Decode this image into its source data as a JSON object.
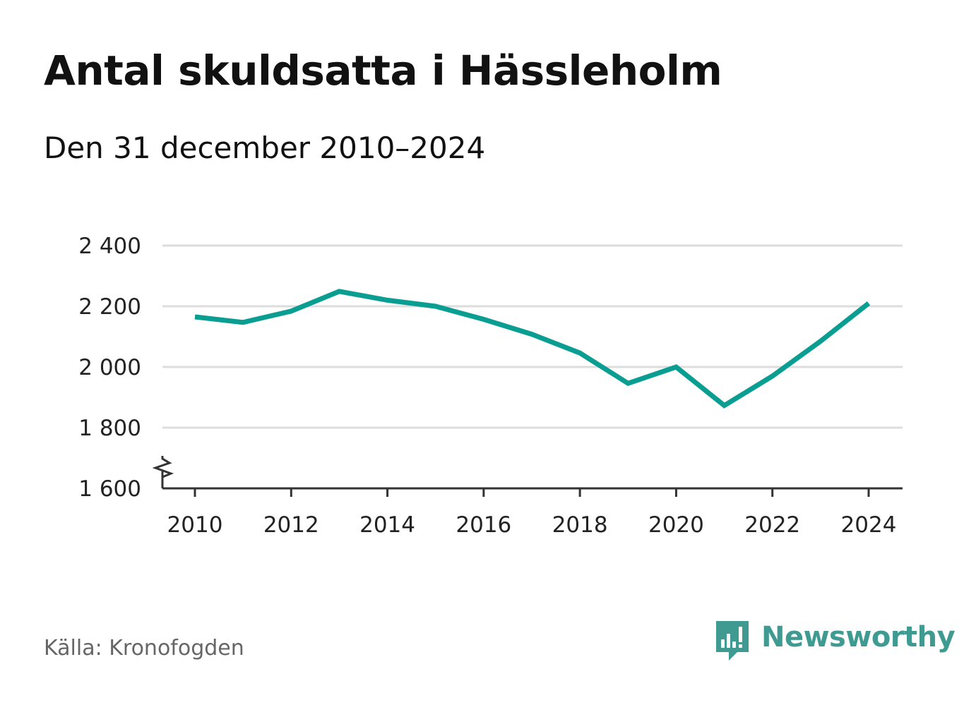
{
  "header": {
    "title": "Antal skuldsatta i Hässleholm",
    "subtitle": "Den 31 december 2010–2024"
  },
  "footer": {
    "source": "Källa: Kronofogden",
    "brand": "Newsworthy",
    "brand_icon": "newsworthy-logo-icon"
  },
  "colors": {
    "line": "#0a9e93",
    "grid": "#dddddd",
    "axis": "#333333",
    "brand": "#3f9a92"
  },
  "chart_data": {
    "type": "line",
    "title": "Antal skuldsatta i Hässleholm",
    "subtitle": "Den 31 december 2010–2024",
    "xlabel": "",
    "ylabel": "",
    "x": [
      2010,
      2011,
      2012,
      2013,
      2014,
      2015,
      2016,
      2017,
      2018,
      2019,
      2020,
      2021,
      2022,
      2023,
      2024
    ],
    "series": [
      {
        "values": [
          2165,
          2147,
          2184,
          2249,
          2220,
          2200,
          2157,
          2108,
          2046,
          1946,
          2000,
          1873,
          1970,
          2085,
          2210
        ]
      }
    ],
    "xlim": [
      2010,
      2024
    ],
    "ylim": [
      1600,
      2400
    ],
    "x_ticks": [
      2010,
      2012,
      2014,
      2016,
      2018,
      2020,
      2022,
      2024
    ],
    "x_tick_labels": [
      "2010",
      "2012",
      "2014",
      "2016",
      "2018",
      "2020",
      "2022",
      "2024"
    ],
    "y_ticks": [
      1600,
      1800,
      2000,
      2200,
      2400
    ],
    "y_tick_labels": [
      "1 600",
      "1 800",
      "2 000",
      "2 200",
      "2 400"
    ],
    "axis_break": true,
    "grid": true,
    "legend": "none"
  }
}
